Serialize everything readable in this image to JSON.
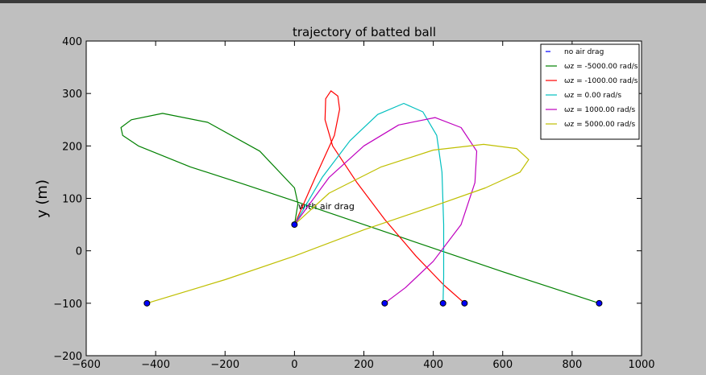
{
  "chart_data": {
    "type": "line",
    "title": "trajectory of batted ball",
    "y_label": "y (m)",
    "annotation": "with air drag",
    "xlim": [
      -600,
      1000
    ],
    "ylim": [
      -200,
      400
    ],
    "xticks": [
      {
        "value": -600,
        "label": "−600"
      },
      {
        "value": -400,
        "label": "−400"
      },
      {
        "value": -200,
        "label": "−200"
      },
      0,
      200,
      400,
      600,
      800,
      1000
    ],
    "yticks": [
      {
        "value": -200,
        "label": "−200"
      },
      {
        "value": -100,
        "label": "−100"
      },
      0,
      100,
      200,
      300,
      400
    ],
    "legend": "upper right",
    "series": [
      {
        "name": "no air drag",
        "color": "#0000ff",
        "style": "markers",
        "x": [
          0,
          -425,
          260,
          428,
          490,
          878
        ],
        "values": [
          50,
          -100,
          -100,
          -100,
          -100,
          -100
        ]
      },
      {
        "name": "ωz = -5000.00 rad/s",
        "color": "#008000",
        "x": [
          0,
          10,
          0,
          -100,
          -250,
          -380,
          -470,
          -500,
          -495,
          -450,
          -300,
          -150,
          0,
          200,
          400,
          600,
          800,
          878
        ],
        "values": [
          50,
          90,
          120,
          190,
          245,
          262,
          250,
          235,
          220,
          200,
          160,
          128,
          95,
          50,
          5,
          -40,
          -83,
          -100
        ]
      },
      {
        "name": "ωz = -1000.00 rad/s",
        "color": "#ff0000",
        "x": [
          0,
          60,
          115,
          130,
          125,
          105,
          90,
          88,
          110,
          180,
          260,
          350,
          430,
          490
        ],
        "values": [
          50,
          140,
          220,
          270,
          295,
          305,
          290,
          250,
          200,
          130,
          60,
          -10,
          -65,
          -100
        ]
      },
      {
        "name": "ωz = 0.00 rad/s",
        "color": "#00bfbf",
        "x": [
          0,
          80,
          160,
          240,
          315,
          370,
          410,
          425,
          430,
          430,
          428
        ],
        "values": [
          50,
          140,
          210,
          260,
          281,
          265,
          220,
          150,
          50,
          -50,
          -100
        ]
      },
      {
        "name": "ωz = 1000.00 rad/s",
        "color": "#bf00bf",
        "x": [
          0,
          100,
          200,
          300,
          405,
          480,
          525,
          520,
          480,
          400,
          320,
          260
        ],
        "values": [
          50,
          140,
          200,
          240,
          254,
          235,
          190,
          130,
          50,
          -20,
          -70,
          -100
        ]
      },
      {
        "name": "ωz = 5000.00 rad/s",
        "color": "#bfbf00",
        "x": [
          0,
          100,
          250,
          400,
          545,
          640,
          675,
          650,
          550,
          400,
          200,
          0,
          -200,
          -425
        ],
        "values": [
          50,
          110,
          160,
          192,
          203,
          195,
          174,
          150,
          120,
          85,
          40,
          -10,
          -55,
          -100
        ]
      }
    ]
  }
}
